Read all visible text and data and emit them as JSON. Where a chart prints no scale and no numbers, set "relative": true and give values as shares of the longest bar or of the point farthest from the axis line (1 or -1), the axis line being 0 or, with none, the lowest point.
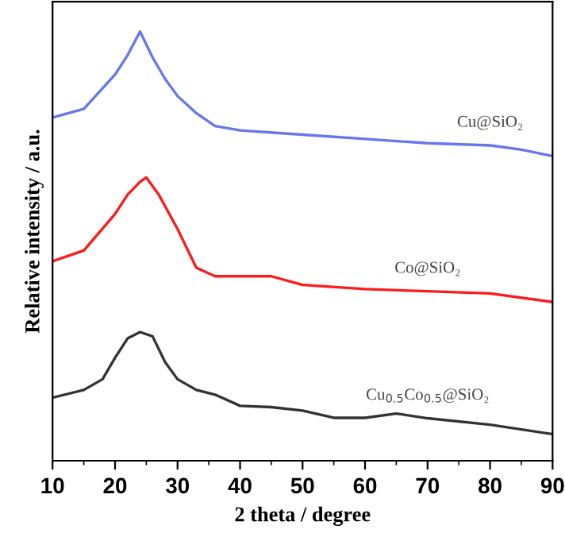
{
  "chart_data": {
    "type": "line",
    "xlabel": "2 theta / degree",
    "ylabel": "Relative intensity / a.u.",
    "relative": true,
    "xlim": [
      10,
      90
    ],
    "xticks": [
      10,
      {
        "value": 15,
        "label": null
      },
      20,
      {
        "value": 25,
        "label": null
      },
      30,
      {
        "value": 35,
        "label": null
      },
      40,
      {
        "value": 45,
        "label": null
      },
      50,
      {
        "value": 55,
        "label": null
      },
      60,
      {
        "value": 65,
        "label": null
      },
      70,
      {
        "value": 75,
        "label": null
      },
      80,
      {
        "value": 85,
        "label": null
      },
      90
    ],
    "grid": false,
    "legend": false,
    "marker": "none",
    "line_style": "solid",
    "series": [
      {
        "name": "Cu@SiO₂",
        "color": "#6677ee",
        "x": [
          10,
          15,
          20,
          22,
          24,
          26,
          28,
          30,
          33,
          36,
          40,
          50,
          60,
          70,
          80,
          85,
          90
        ],
        "values": [
          0.8,
          0.82,
          0.9,
          0.945,
          1.0,
          0.94,
          0.89,
          0.85,
          0.81,
          0.78,
          0.77,
          0.76,
          0.75,
          0.74,
          0.735,
          0.725,
          0.71
        ]
      },
      {
        "name": "Co@SiO₂",
        "color": "#ff1a1a",
        "x": [
          10,
          15,
          20,
          22,
          24,
          25,
          27,
          30,
          33,
          36,
          40,
          45,
          50,
          60,
          70,
          80,
          90
        ],
        "values": [
          0.465,
          0.49,
          0.575,
          0.62,
          0.65,
          0.66,
          0.62,
          0.54,
          0.45,
          0.43,
          0.43,
          0.43,
          0.41,
          0.4,
          0.395,
          0.39,
          0.37
        ]
      },
      {
        "name": "Cu$_{0.5}$Co$_{0.5}$@SiO₂",
        "color": "#333333",
        "x": [
          10,
          15,
          18,
          20,
          22,
          24,
          26,
          28,
          30,
          33,
          36,
          40,
          45,
          50,
          55,
          60,
          65,
          70,
          80,
          90
        ],
        "values": [
          0.147,
          0.165,
          0.19,
          0.24,
          0.285,
          0.3,
          0.29,
          0.23,
          0.19,
          0.165,
          0.154,
          0.128,
          0.125,
          0.117,
          0.1,
          0.1,
          0.11,
          0.099,
          0.084,
          0.062
        ]
      }
    ]
  }
}
